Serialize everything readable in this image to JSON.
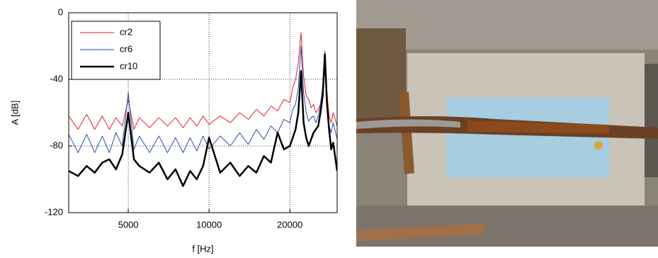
{
  "chart_data": {
    "type": "line",
    "x_label": "f [Hz]",
    "y_label": "A [dB]",
    "xscale": "log",
    "grid": true,
    "legend": "upper left",
    "xlim": [
      3000,
      30000
    ],
    "xticks": [
      5000,
      10000,
      20000
    ],
    "ylim": [
      -120,
      0
    ],
    "yticks": [
      -120,
      -80,
      -40,
      0
    ],
    "x": [
      3000,
      3250,
      3500,
      3750,
      4000,
      4250,
      4500,
      4750,
      5000,
      5250,
      5500,
      6000,
      6500,
      7000,
      7500,
      8000,
      8500,
      9000,
      9500,
      10000,
      11000,
      12000,
      13000,
      14000,
      15000,
      16000,
      17000,
      18000,
      19000,
      20000,
      20500,
      21000,
      21500,
      22000,
      22500,
      23000,
      23500,
      24000,
      24500,
      25000,
      25500,
      26000,
      26500,
      27000,
      27500,
      28000,
      28500,
      29000,
      30000
    ],
    "series": [
      {
        "name": "cr2",
        "color": "#e8202a",
        "width": 1,
        "values": [
          -62,
          -70,
          -61,
          -70,
          -62,
          -70,
          -63,
          -68,
          -52,
          -70,
          -63,
          -69,
          -63,
          -68,
          -63,
          -69,
          -63,
          -68,
          -62,
          -67,
          -62,
          -66,
          -60,
          -64,
          -58,
          -62,
          -56,
          -59,
          -52,
          -54,
          -45,
          -40,
          -30,
          -12,
          -38,
          -50,
          -52,
          -57,
          -55,
          -60,
          -58,
          -55,
          -45,
          -25,
          -48,
          -62,
          -66,
          -60,
          -68
        ]
      },
      {
        "name": "cr6",
        "color": "#2b4ea8",
        "width": 1,
        "values": [
          -73,
          -84,
          -73,
          -84,
          -74,
          -84,
          -72,
          -80,
          -48,
          -82,
          -74,
          -84,
          -74,
          -84,
          -75,
          -84,
          -75,
          -83,
          -74,
          -82,
          -74,
          -80,
          -72,
          -79,
          -70,
          -76,
          -68,
          -72,
          -64,
          -66,
          -58,
          -55,
          -45,
          -20,
          -48,
          -60,
          -65,
          -63,
          -62,
          -66,
          -62,
          -55,
          -45,
          -23,
          -50,
          -68,
          -72,
          -66,
          -76
        ]
      },
      {
        "name": "cr10",
        "color": "#000000",
        "width": 2.5,
        "values": [
          -95,
          -98,
          -92,
          -96,
          -90,
          -88,
          -94,
          -85,
          -60,
          -88,
          -92,
          -96,
          -90,
          -100,
          -94,
          -104,
          -95,
          -100,
          -92,
          -75,
          -96,
          -90,
          -98,
          -92,
          -96,
          -86,
          -90,
          -72,
          -82,
          -80,
          -75,
          -70,
          -60,
          -35,
          -66,
          -75,
          -80,
          -76,
          -72,
          -70,
          -68,
          -60,
          -50,
          -25,
          -55,
          -70,
          -82,
          -78,
          -95
        ]
      }
    ]
  }
}
